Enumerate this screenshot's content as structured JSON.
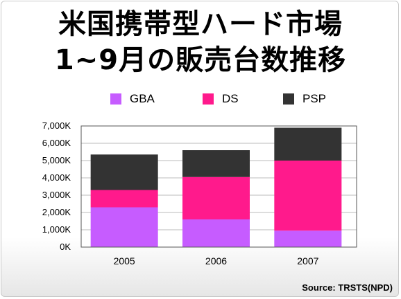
{
  "title": {
    "line1": "米国携帯型ハード市場",
    "line2": "1~9月の販売台数推移"
  },
  "source": "Source: TRSTS(NPD)",
  "colors": {
    "GBA": "#c65cff",
    "DS": "#ff1a8c",
    "PSP": "#333333"
  },
  "chart_data": {
    "type": "bar",
    "stacked": true,
    "categories": [
      "2005",
      "2006",
      "2007"
    ],
    "series": [
      {
        "name": "GBA",
        "values": [
          2300,
          1600,
          950
        ]
      },
      {
        "name": "DS",
        "values": [
          1000,
          2450,
          4050
        ]
      },
      {
        "name": "PSP",
        "values": [
          2050,
          1550,
          1900
        ]
      }
    ],
    "y_ticks": [
      "0K",
      "1,000K",
      "2,000K",
      "3,000K",
      "4,000K",
      "5,000K",
      "6,000K",
      "7,000K"
    ],
    "ylim": [
      0,
      7000
    ],
    "grid": true,
    "legend_position": "top"
  }
}
